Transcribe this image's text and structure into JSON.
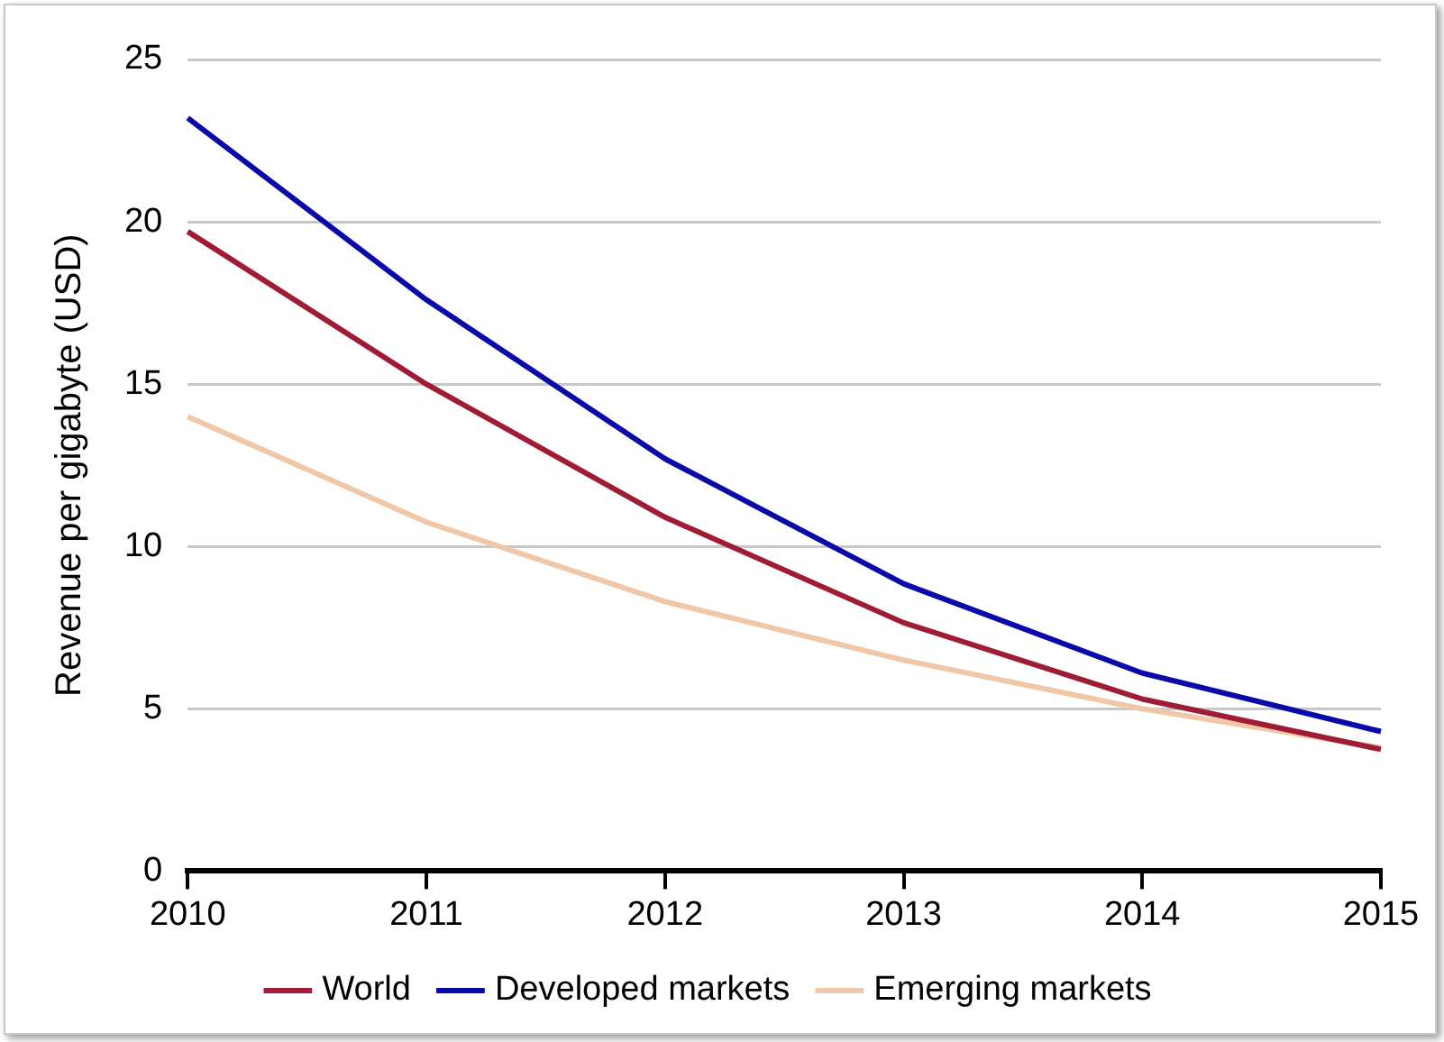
{
  "chart_data": {
    "type": "line",
    "ylabel": "Revenue per gigabyte (USD)",
    "categories": [
      "2010",
      "2011",
      "2012",
      "2013",
      "2014",
      "2015"
    ],
    "series": [
      {
        "name": "World",
        "color": "#a01c35",
        "values": [
          19.7,
          15.0,
          10.9,
          7.65,
          5.3,
          3.75
        ]
      },
      {
        "name": "Developed markets",
        "color": "#0a0aa8",
        "values": [
          23.2,
          17.6,
          12.7,
          8.85,
          6.1,
          4.3
        ]
      },
      {
        "name": "Emerging markets",
        "color": "#f0c8a8",
        "values": [
          14.0,
          10.75,
          8.3,
          6.5,
          5.0,
          3.8
        ]
      }
    ],
    "ylim": [
      0,
      25
    ],
    "yticks": [
      0,
      5,
      10,
      15,
      20,
      25
    ],
    "grid": "y",
    "legend": "bottom",
    "marker": "none",
    "line_style": "solid"
  }
}
